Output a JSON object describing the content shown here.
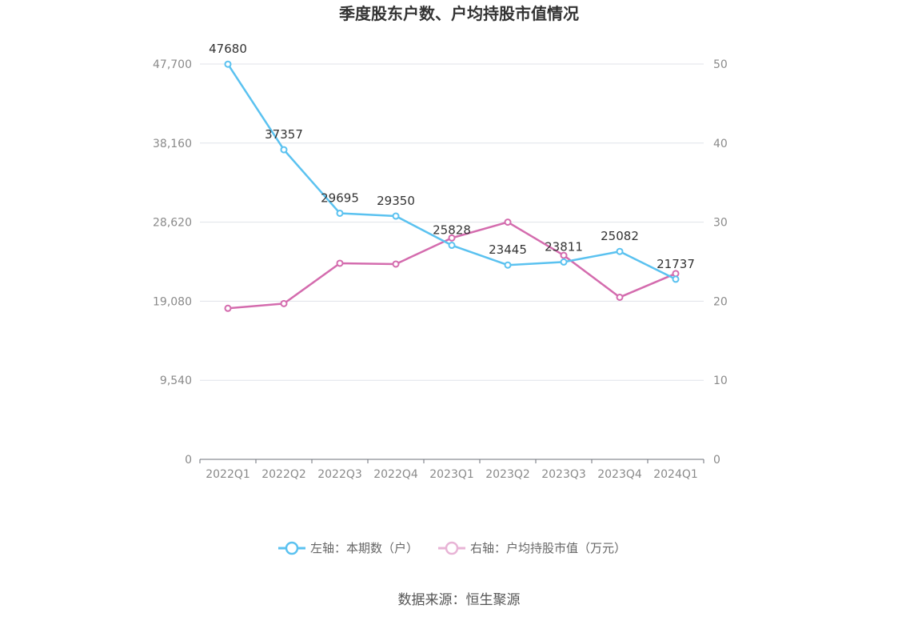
{
  "chart_data": {
    "type": "line",
    "title": "季度股东户数、户均持股市值情况",
    "categories": [
      "2022Q1",
      "2022Q2",
      "2022Q3",
      "2022Q4",
      "2023Q1",
      "2023Q2",
      "2023Q3",
      "2023Q4",
      "2024Q1"
    ],
    "y_left": {
      "ticks": [
        "0",
        "9,540",
        "19,080",
        "28,620",
        "38,160",
        "47,700"
      ],
      "range": [
        0,
        47700
      ]
    },
    "y_right": {
      "ticks": [
        "0",
        "10",
        "20",
        "30",
        "40",
        "50"
      ],
      "range": [
        0,
        50
      ]
    },
    "grid": true,
    "legend_position": "bottom",
    "series": [
      {
        "name": "左轴：本期数（户）",
        "axis": "left",
        "color": "#5bc2f0",
        "values": [
          47680,
          37357,
          29695,
          29350,
          25828,
          23445,
          23811,
          25082,
          21737
        ],
        "labels": [
          "47680",
          "37357",
          "29695",
          "29350",
          "25828",
          "23445",
          "23811",
          "25082",
          "21737"
        ]
      },
      {
        "name": "右轴：户均持股市值（万元）",
        "axis": "right",
        "color": "#d46cae",
        "values": [
          19.1,
          19.7,
          24.8,
          24.7,
          28.0,
          30.0,
          25.8,
          20.5,
          23.5
        ]
      }
    ],
    "source": "数据来源：恒生聚源"
  }
}
